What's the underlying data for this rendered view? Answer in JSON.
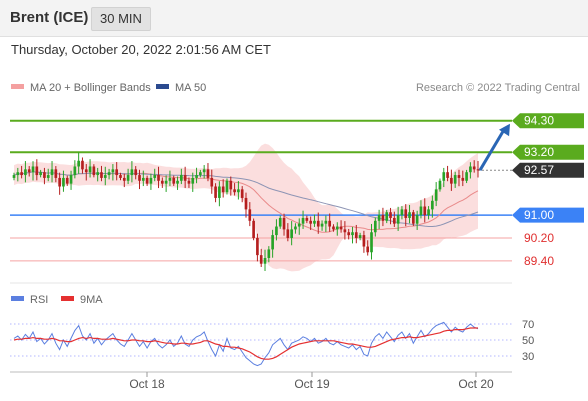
{
  "header": {
    "symbol": "Brent (ICE)",
    "timeframe": "30 MIN"
  },
  "timestamp": "Thursday, October 20, 2022 2:01:56 AM CET",
  "colors": {
    "bollinger": "#f4a0a0",
    "ma50": "#2b4a8f",
    "resistance": "#5aab1e",
    "support": "#f5a3a3",
    "pivot": "#3b82f6",
    "current": "#333333",
    "up": "#27a327",
    "down": "#b51f1f",
    "rsi": "#5b7fe0",
    "rsi_ma": "#e53030"
  },
  "chart_data": [
    {
      "type": "candlestick",
      "legend": [
        "MA 20 + Bollinger Bands",
        "MA 50"
      ],
      "legend_position": "top-left",
      "attribution": "Research © 2022 Trading Central",
      "ylim": [
        88.8,
        95.2
      ],
      "x_ticks": [
        "Oct 18",
        "Oct 19",
        "Oct 20"
      ],
      "levels": [
        {
          "value": 94.3,
          "label": "94.30",
          "kind": "resistance"
        },
        {
          "value": 93.2,
          "label": "93.20",
          "kind": "resistance"
        },
        {
          "value": 92.57,
          "label": "92.57",
          "kind": "current"
        },
        {
          "value": 91.0,
          "label": "91.00",
          "kind": "pivot"
        },
        {
          "value": 90.2,
          "label": "90.20",
          "kind": "support"
        },
        {
          "value": 89.4,
          "label": "89.40",
          "kind": "support"
        }
      ],
      "closes": [
        92.4,
        92.5,
        92.4,
        92.6,
        92.5,
        92.7,
        92.4,
        92.5,
        92.3,
        92.4,
        92.6,
        92.3,
        92.0,
        92.3,
        92.1,
        92.4,
        92.7,
        92.9,
        92.6,
        92.5,
        92.7,
        92.4,
        92.5,
        92.3,
        92.4,
        92.5,
        92.6,
        92.4,
        92.3,
        92.2,
        92.4,
        92.6,
        92.4,
        92.2,
        92.3,
        92.1,
        92.3,
        92.4,
        92.2,
        92.1,
        92.2,
        92.3,
        92.1,
        92.2,
        92.4,
        92.2,
        92.1,
        92.3,
        92.4,
        92.5,
        92.6,
        92.3,
        92.0,
        91.6,
        92.0,
        91.8,
        92.2,
        91.9,
        91.8,
        91.9,
        91.6,
        91.2,
        90.8,
        90.2,
        89.6,
        89.3,
        89.5,
        89.8,
        90.3,
        90.6,
        90.9,
        90.5,
        90.2,
        90.5,
        90.6,
        90.7,
        90.9,
        90.8,
        90.7,
        90.8,
        90.6,
        90.7,
        90.8,
        90.6,
        90.5,
        90.6,
        90.5,
        90.4,
        90.3,
        90.4,
        90.2,
        90.3,
        89.9,
        89.7,
        90.4,
        90.8,
        91.0,
        90.8,
        91.1,
        90.9,
        90.7,
        91.0,
        91.2,
        90.9,
        91.1,
        90.7,
        91.0,
        91.3,
        91.0,
        91.2,
        91.5,
        91.9,
        92.2,
        92.5,
        92.3,
        92.1,
        92.4,
        92.3,
        92.2,
        92.5,
        92.7,
        92.6,
        92.57
      ],
      "projection": [
        92.57,
        94.3
      ]
    },
    {
      "type": "line",
      "legend": [
        "RSI",
        "9MA"
      ],
      "ylim": [
        15,
        85
      ],
      "y_ticks": [
        30,
        50,
        70
      ],
      "rsi": [
        52,
        55,
        50,
        57,
        52,
        60,
        48,
        52,
        45,
        50,
        58,
        46,
        38,
        50,
        42,
        52,
        62,
        68,
        55,
        50,
        58,
        46,
        52,
        44,
        50,
        54,
        58,
        50,
        45,
        42,
        50,
        58,
        50,
        42,
        48,
        40,
        48,
        52,
        44,
        40,
        44,
        50,
        42,
        46,
        55,
        45,
        42,
        50,
        54,
        56,
        60,
        48,
        38,
        30,
        44,
        36,
        52,
        40,
        38,
        42,
        35,
        28,
        24,
        20,
        18,
        20,
        28,
        34,
        44,
        48,
        52,
        44,
        38,
        46,
        48,
        50,
        54,
        52,
        48,
        52,
        46,
        48,
        52,
        46,
        44,
        48,
        44,
        42,
        40,
        44,
        38,
        42,
        32,
        30,
        46,
        54,
        58,
        52,
        60,
        54,
        48,
        56,
        60,
        52,
        58,
        46,
        54,
        62,
        54,
        58,
        64,
        68,
        70,
        72,
        66,
        60,
        66,
        62,
        60,
        66,
        70,
        66,
        64
      ],
      "rsi_ma": [
        50,
        51,
        51,
        52,
        52,
        53,
        52,
        52,
        51,
        51,
        52,
        51,
        49,
        49,
        48,
        48,
        50,
        52,
        53,
        52,
        53,
        52,
        52,
        51,
        51,
        51,
        52,
        51,
        50,
        49,
        49,
        50,
        50,
        49,
        49,
        48,
        48,
        49,
        48,
        47,
        46,
        46,
        45,
        45,
        46,
        46,
        45,
        45,
        46,
        47,
        49,
        49,
        47,
        45,
        44,
        42,
        42,
        41,
        41,
        40,
        39,
        37,
        35,
        32,
        29,
        27,
        26,
        26,
        27,
        29,
        32,
        35,
        38,
        41,
        43,
        45,
        46,
        47,
        48,
        49,
        49,
        49,
        49,
        49,
        49,
        48,
        47,
        46,
        45,
        45,
        44,
        43,
        42,
        41,
        41,
        42,
        44,
        46,
        48,
        50,
        51,
        52,
        53,
        53,
        54,
        53,
        53,
        54,
        55,
        56,
        57,
        58,
        59,
        61,
        62,
        62,
        63,
        63,
        63,
        64,
        65,
        65,
        65
      ]
    }
  ]
}
